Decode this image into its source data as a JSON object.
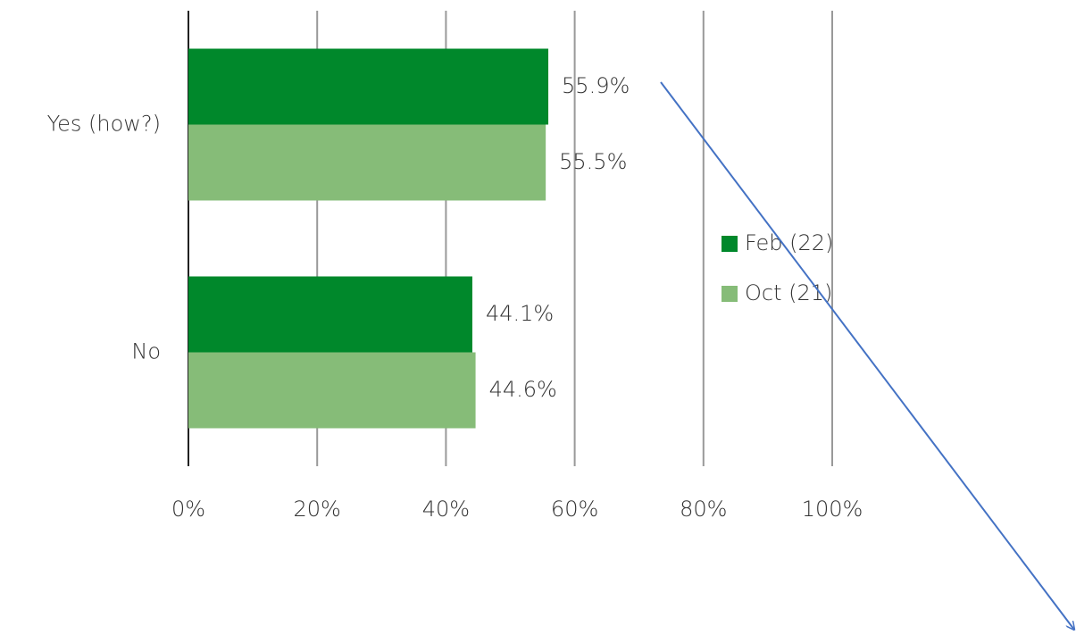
{
  "chart_data": {
    "type": "bar",
    "orientation": "horizontal",
    "categories": [
      "Yes (how?)",
      "No"
    ],
    "series": [
      {
        "name": "Feb (22)",
        "color": "#00882b",
        "values": [
          55.9,
          44.1
        ],
        "value_labels": [
          "55.9%",
          "44.1%"
        ]
      },
      {
        "name": "Oct (21)",
        "color": "#86bc78",
        "values": [
          55.5,
          44.6
        ],
        "value_labels": [
          "55.5%",
          "44.6%"
        ]
      }
    ],
    "xlim": [
      0,
      100
    ],
    "xticks": [
      {
        "value": 0,
        "label": "0%"
      },
      {
        "value": 20,
        "label": "20%"
      },
      {
        "value": 40,
        "label": "40%"
      },
      {
        "value": 60,
        "label": "60%"
      },
      {
        "value": 80,
        "label": "80%"
      },
      {
        "value": 100,
        "label": "100%"
      }
    ],
    "grid": true,
    "legend": "right"
  }
}
